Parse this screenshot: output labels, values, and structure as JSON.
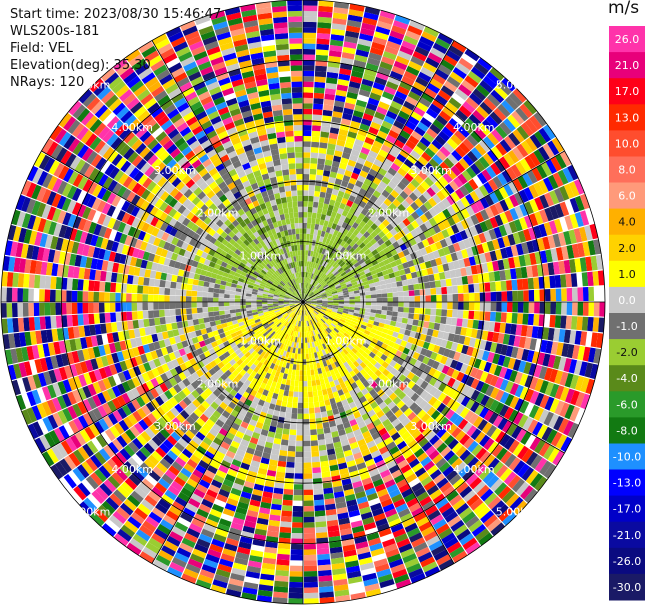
{
  "header": {
    "start_time": "Start time: 2023/08/30 15:46:47",
    "instrument": "WLS200s-181",
    "field": "Field: VEL",
    "elevation": "Elevation(deg): 35.30",
    "nrays": "NRays: 120"
  },
  "colorbar": {
    "unit": "m/s",
    "ticks": [
      "26.0",
      "21.0",
      "17.0",
      "13.0",
      "10.0",
      "8.0",
      "6.0",
      "4.0",
      "2.0",
      "1.0",
      "0.0",
      "-1.0",
      "-2.0",
      "-4.0",
      "-6.0",
      "-8.0",
      "-10.0",
      "-13.0",
      "-17.0",
      "-21.0",
      "-26.0",
      "-30.0"
    ],
    "colors": [
      "#ff33aa",
      "#e8007a",
      "#ff0018",
      "#ff2a00",
      "#ff4d2e",
      "#ff6f5a",
      "#ff9a7a",
      "#ffb000",
      "#ffd200",
      "#ffff00",
      "#c8c8c8",
      "#707070",
      "#9acd32",
      "#5a8a1a",
      "#2a9a2a",
      "#127a12",
      "#1e90ff",
      "#0000ff",
      "#0000c8",
      "#0a0aa0",
      "#0a0a80",
      "#1a1a66"
    ]
  },
  "chart_data": {
    "type": "heatmap",
    "plot_kind": "polar PPI",
    "title": "",
    "range_ring_labels": [
      "1.00km",
      "2.00km",
      "3.00km",
      "4.00km",
      "5.00km"
    ],
    "range_km_max": 5.0,
    "nrays": 120,
    "value_range": [
      -30.0,
      26.0
    ],
    "grid": true
  }
}
